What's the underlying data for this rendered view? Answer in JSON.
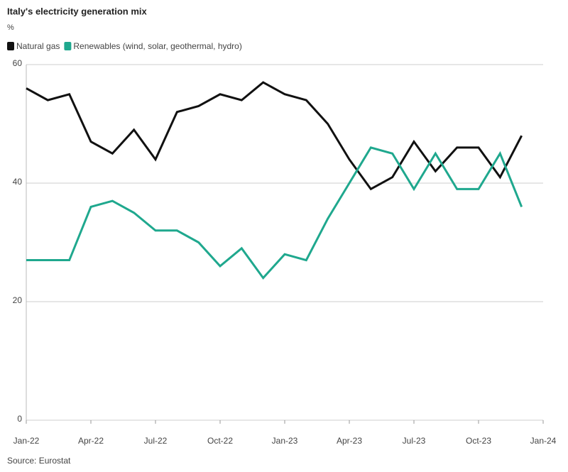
{
  "chart_data": {
    "type": "line",
    "title": "Italy's electricity generation mix",
    "subtitle": "%",
    "source": "Source: Eurostat",
    "x": [
      "2022-01",
      "2022-02",
      "2022-03",
      "2022-04",
      "2022-05",
      "2022-06",
      "2022-07",
      "2022-08",
      "2022-09",
      "2022-10",
      "2022-11",
      "2022-12",
      "2023-01",
      "2023-02",
      "2023-03",
      "2023-04",
      "2023-05",
      "2023-06",
      "2023-07",
      "2023-08",
      "2023-09",
      "2023-10",
      "2023-11",
      "2023-12"
    ],
    "series": [
      {
        "name": "Natural gas",
        "color": "#111111",
        "values": [
          56,
          54,
          55,
          47,
          45,
          49,
          44,
          52,
          53,
          55,
          54,
          57,
          55,
          54,
          50,
          44,
          39,
          41,
          47,
          42,
          46,
          46,
          41,
          48
        ]
      },
      {
        "name": "Renewables (wind, solar, geothermal, hydro)",
        "color": "#1fa88e",
        "values": [
          27,
          27,
          27,
          36,
          37,
          35,
          32,
          32,
          30,
          26,
          29,
          24,
          28,
          27,
          34,
          40,
          46,
          45,
          39,
          45,
          39,
          39,
          45,
          36
        ]
      }
    ],
    "xlim": [
      "2022-01",
      "2024-01"
    ],
    "xticks": [
      {
        "value": "2022-01",
        "label": "Jan-22"
      },
      {
        "value": "2022-04",
        "label": "Apr-22"
      },
      {
        "value": "2022-07",
        "label": "Jul-22"
      },
      {
        "value": "2022-10",
        "label": "Oct-22"
      },
      {
        "value": "2023-01",
        "label": "Jan-23"
      },
      {
        "value": "2023-04",
        "label": "Apr-23"
      },
      {
        "value": "2023-07",
        "label": "Jul-23"
      },
      {
        "value": "2023-10",
        "label": "Oct-23"
      },
      {
        "value": "2024-01",
        "label": "Jan-24"
      }
    ],
    "ylim": [
      0,
      60
    ],
    "yticks": [
      0,
      20,
      40,
      60
    ],
    "grid": true
  }
}
